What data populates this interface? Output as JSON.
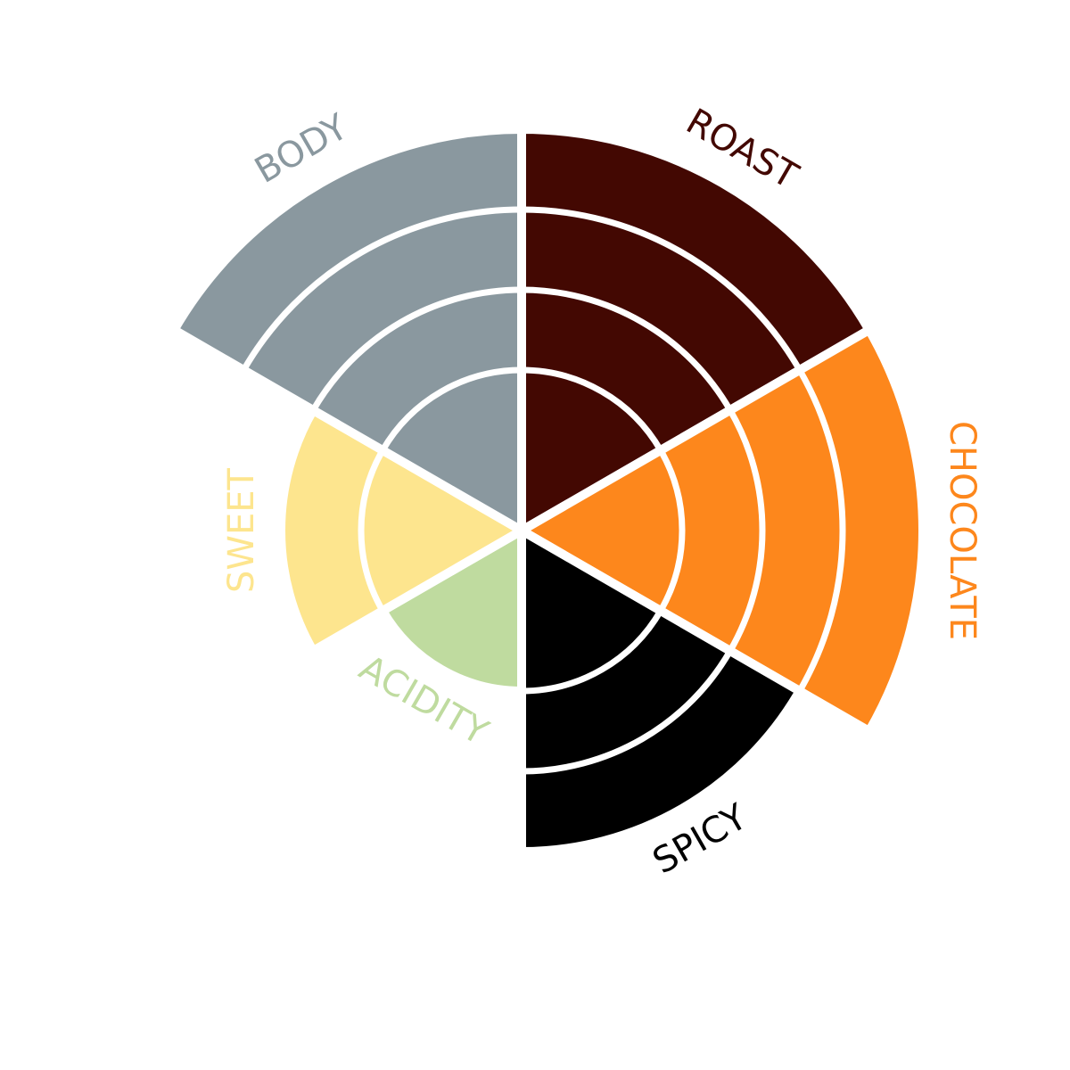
{
  "chart_data": {
    "type": "polar",
    "categories": [
      "ROAST",
      "CHOCOLATE",
      "SPICY",
      "ACIDITY",
      "SWEET",
      "BODY"
    ],
    "values": [
      4,
      4,
      3,
      1,
      2,
      4
    ],
    "colors": [
      "#430802",
      "#fd871c",
      "#000000",
      "#bfdb9f",
      "#fde58e",
      "#8a989f"
    ]
  }
}
